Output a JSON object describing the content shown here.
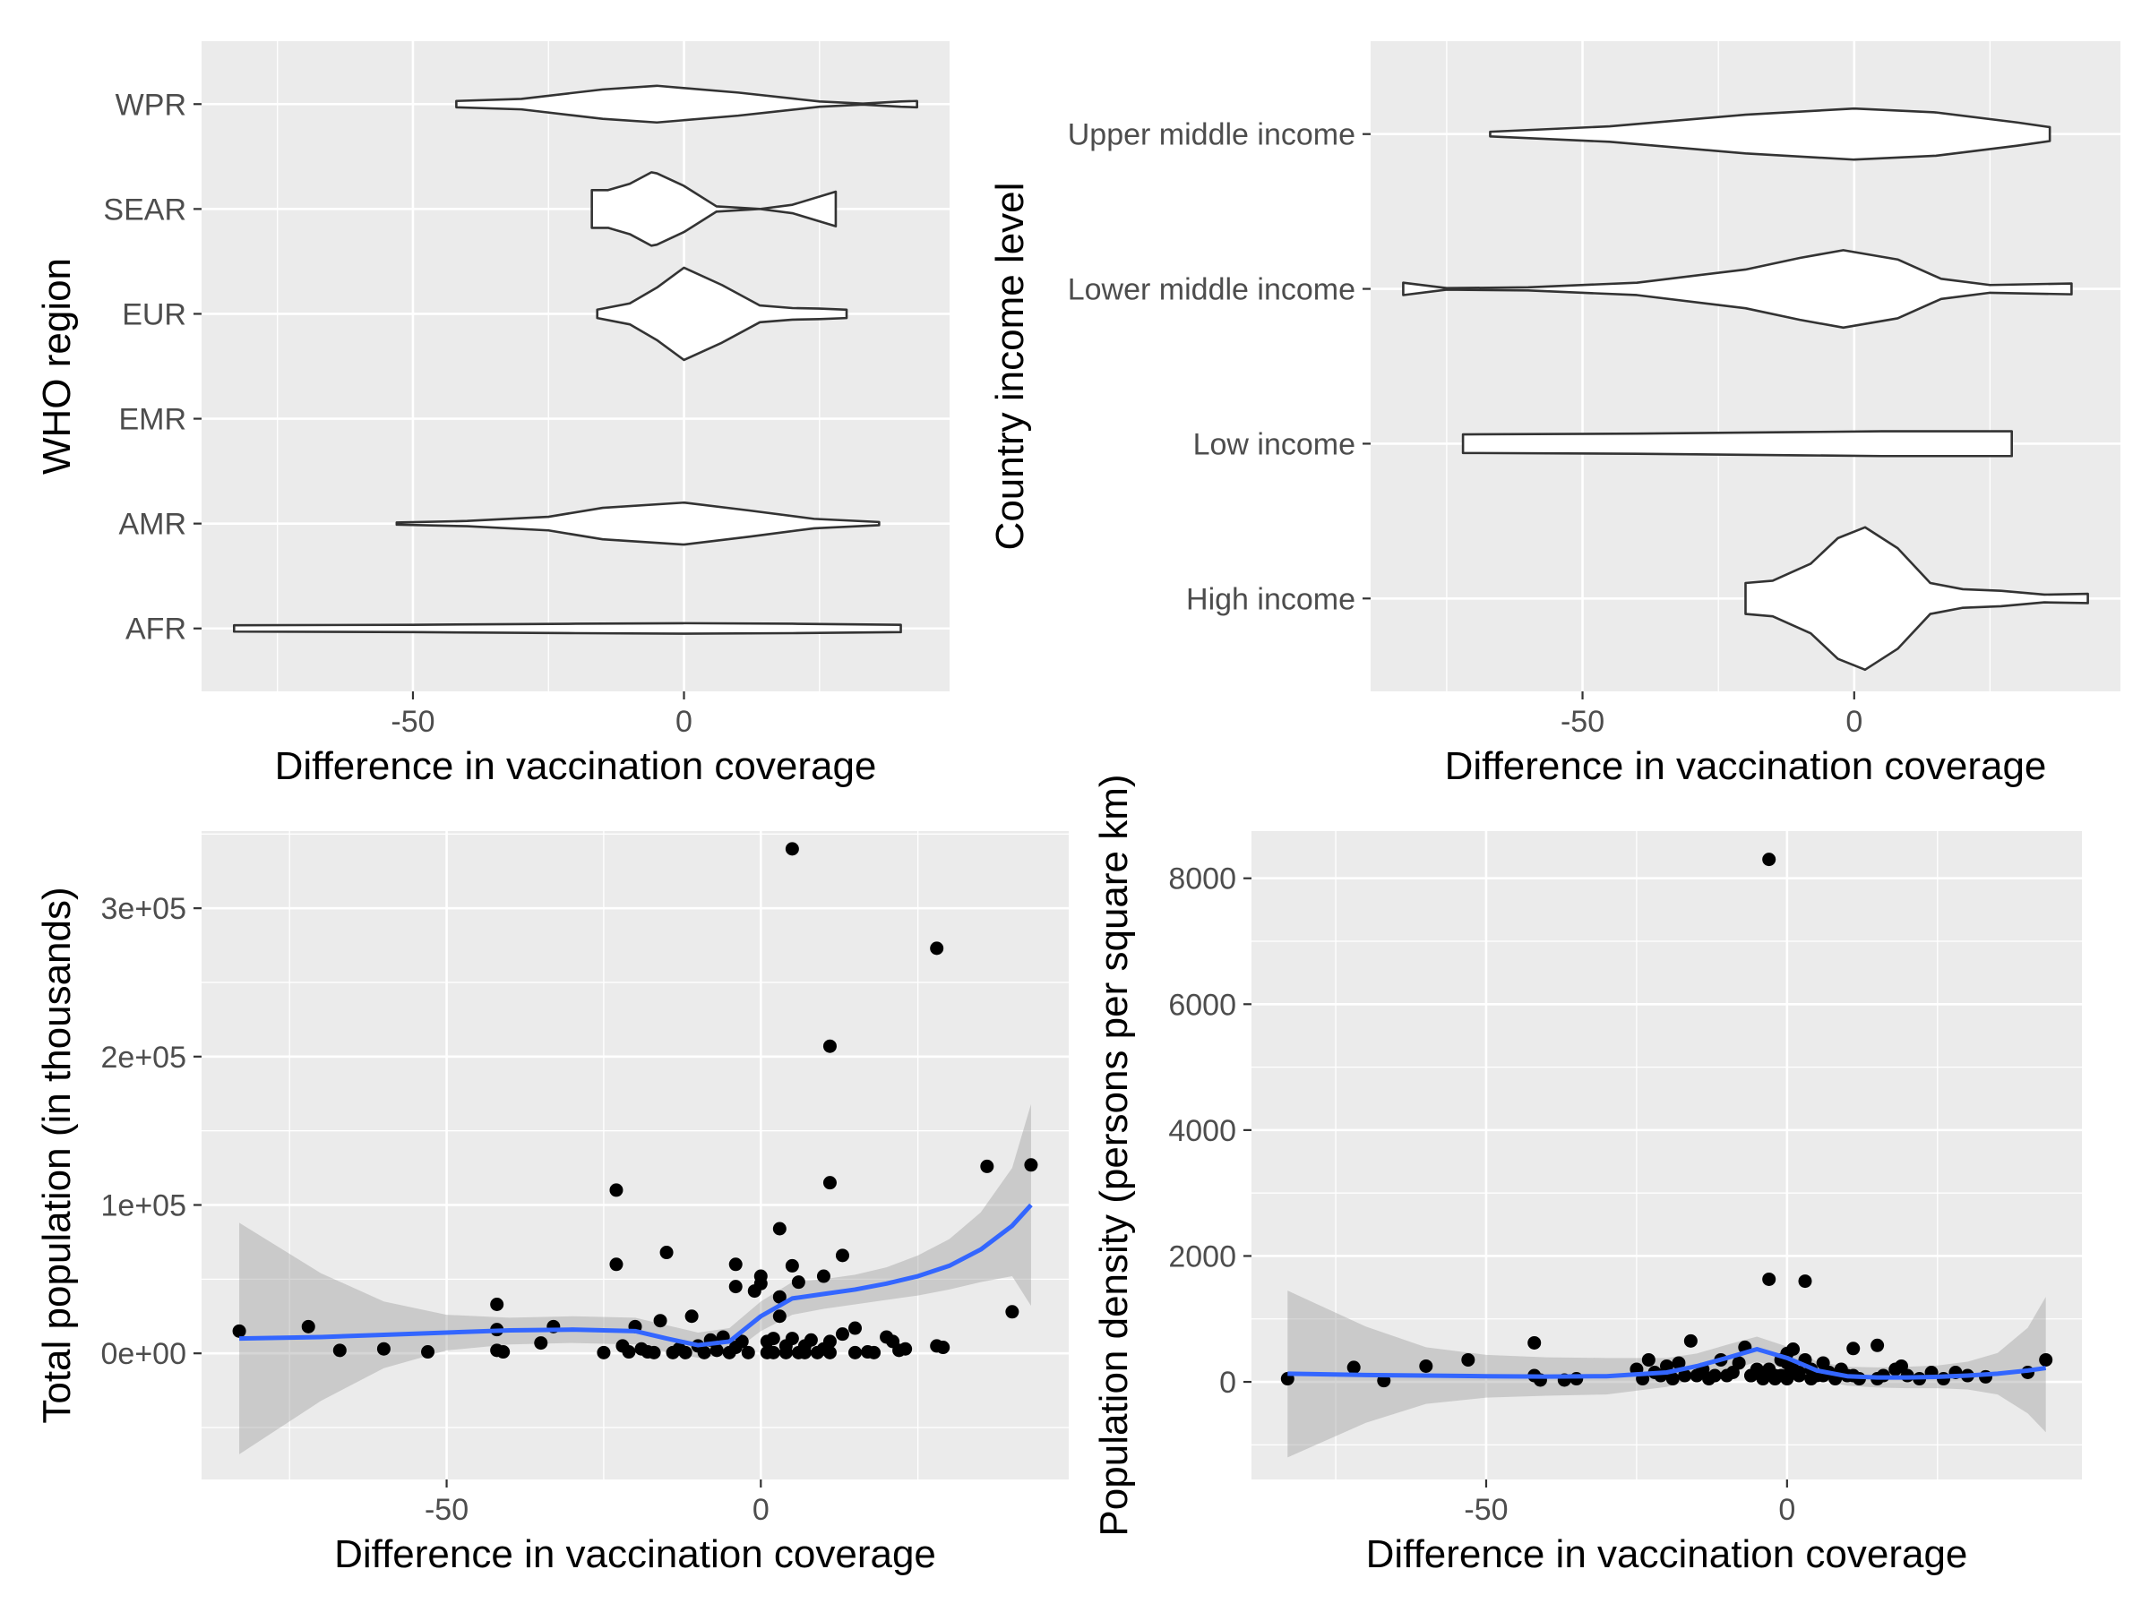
{
  "chart_data": [
    {
      "id": "p1",
      "type": "violin",
      "xlabel": "Difference in vaccination coverage",
      "ylabel": "WHO region",
      "xlim": [
        -89,
        49
      ],
      "x_ticks": [
        -50,
        0
      ],
      "categories": [
        "AFR",
        "AMR",
        "EMR",
        "EUR",
        "SEAR",
        "WPR"
      ],
      "violins": [
        {
          "category": "AFR",
          "profile": [
            [
              -83,
              0.06
            ],
            [
              -50,
              0.07
            ],
            [
              -20,
              0.09
            ],
            [
              0,
              0.1
            ],
            [
              20,
              0.09
            ],
            [
              40,
              0.07
            ]
          ]
        },
        {
          "category": "AMR",
          "profile": [
            [
              -53,
              0.02
            ],
            [
              -40,
              0.05
            ],
            [
              -25,
              0.13
            ],
            [
              -15,
              0.3
            ],
            [
              0,
              0.4
            ],
            [
              12,
              0.25
            ],
            [
              24,
              0.09
            ],
            [
              36,
              0.03
            ]
          ]
        },
        {
          "category": "EMR",
          "profile": []
        },
        {
          "category": "EUR",
          "profile": [
            [
              -16,
              0.08
            ],
            [
              -10,
              0.2
            ],
            [
              -5,
              0.5
            ],
            [
              0,
              0.88
            ],
            [
              7,
              0.55
            ],
            [
              14,
              0.16
            ],
            [
              20,
              0.11
            ],
            [
              25,
              0.1
            ],
            [
              30,
              0.08
            ]
          ]
        },
        {
          "category": "SEAR",
          "profile": [
            [
              -17,
              0.36
            ],
            [
              -14,
              0.36
            ],
            [
              -10,
              0.48
            ],
            [
              -6,
              0.7
            ],
            [
              -5,
              0.68
            ],
            [
              0,
              0.44
            ],
            [
              6,
              0.05
            ],
            [
              14,
              0.0
            ],
            [
              20,
              0.08
            ],
            [
              28,
              0.33
            ]
          ]
        },
        {
          "category": "WPR",
          "profile": [
            [
              -42,
              0.06
            ],
            [
              -30,
              0.1
            ],
            [
              -15,
              0.28
            ],
            [
              -5,
              0.35
            ],
            [
              10,
              0.22
            ],
            [
              25,
              0.05
            ],
            [
              33,
              0.01
            ],
            [
              40,
              0.05
            ],
            [
              43,
              0.06
            ]
          ]
        }
      ]
    },
    {
      "id": "p2",
      "type": "violin",
      "xlabel": "Difference in vaccination coverage",
      "ylabel": "Country income level",
      "xlim": [
        -89,
        49
      ],
      "x_ticks": [
        -50,
        0
      ],
      "categories": [
        "High income",
        "Low income",
        "Lower middle income",
        "Upper middle income"
      ],
      "violins": [
        {
          "category": "High income",
          "profile": [
            [
              -20,
              0.2
            ],
            [
              -15,
              0.23
            ],
            [
              -8,
              0.45
            ],
            [
              -3,
              0.78
            ],
            [
              2,
              0.92
            ],
            [
              8,
              0.65
            ],
            [
              14,
              0.2
            ],
            [
              20,
              0.12
            ],
            [
              27,
              0.1
            ],
            [
              35,
              0.05
            ],
            [
              43,
              0.06
            ]
          ]
        },
        {
          "category": "Low income",
          "profile": [
            [
              -72,
              0.12
            ],
            [
              -40,
              0.13
            ],
            [
              -10,
              0.15
            ],
            [
              5,
              0.16
            ],
            [
              29,
              0.16
            ]
          ]
        },
        {
          "category": "Lower middle income",
          "profile": [
            [
              -83,
              0.08
            ],
            [
              -75,
              0.01
            ],
            [
              -60,
              0.02
            ],
            [
              -40,
              0.08
            ],
            [
              -20,
              0.25
            ],
            [
              -10,
              0.4
            ],
            [
              -2,
              0.5
            ],
            [
              8,
              0.38
            ],
            [
              16,
              0.13
            ],
            [
              25,
              0.05
            ],
            [
              40,
              0.07
            ]
          ]
        },
        {
          "category": "Upper middle income",
          "profile": [
            [
              -67,
              0.03
            ],
            [
              -45,
              0.1
            ],
            [
              -20,
              0.25
            ],
            [
              0,
              0.33
            ],
            [
              15,
              0.28
            ],
            [
              30,
              0.15
            ],
            [
              36,
              0.09
            ]
          ]
        }
      ]
    },
    {
      "id": "p3",
      "type": "scatter",
      "xlabel": "Difference in vaccination coverage",
      "ylabel": "Total population (in thousands)",
      "xlim": [
        -89,
        49
      ],
      "ylim": [
        -85000,
        352000
      ],
      "x_ticks": [
        -50,
        0
      ],
      "y_ticks": [
        0,
        100000,
        200000,
        300000
      ],
      "y_tick_labels": [
        "0e+00",
        "1e+05",
        "2e+05",
        "3e+05"
      ],
      "points": [
        [
          -83,
          15000
        ],
        [
          -72,
          18000
        ],
        [
          -67,
          2000
        ],
        [
          -60,
          3000
        ],
        [
          -53,
          1000
        ],
        [
          -42,
          33000
        ],
        [
          -42,
          16000
        ],
        [
          -42,
          2000
        ],
        [
          -41,
          1000
        ],
        [
          -35,
          7000
        ],
        [
          -33,
          18000
        ],
        [
          -25,
          500
        ],
        [
          -23,
          110000
        ],
        [
          -23,
          60000
        ],
        [
          -22,
          5000
        ],
        [
          -21,
          1000
        ],
        [
          -20,
          18000
        ],
        [
          -19,
          3000
        ],
        [
          -18,
          1000
        ],
        [
          -17,
          500
        ],
        [
          -16,
          22000
        ],
        [
          -15,
          68000
        ],
        [
          -14,
          500
        ],
        [
          -13,
          3000
        ],
        [
          -12,
          500
        ],
        [
          -11,
          25000
        ],
        [
          -10,
          5000
        ],
        [
          -9,
          500
        ],
        [
          -8,
          9000
        ],
        [
          -7,
          2000
        ],
        [
          -6,
          11000
        ],
        [
          -5,
          500
        ],
        [
          -4,
          4000
        ],
        [
          -4,
          60000
        ],
        [
          -4,
          45000
        ],
        [
          -3,
          8000
        ],
        [
          -2,
          500
        ],
        [
          -1,
          42000
        ],
        [
          0,
          47000
        ],
        [
          0,
          52000
        ],
        [
          1,
          500
        ],
        [
          1,
          8000
        ],
        [
          2,
          10000
        ],
        [
          2,
          500
        ],
        [
          3,
          84000
        ],
        [
          3,
          38000
        ],
        [
          3,
          25000
        ],
        [
          4,
          500
        ],
        [
          4,
          5000
        ],
        [
          5,
          340000
        ],
        [
          5,
          59000
        ],
        [
          5,
          10000
        ],
        [
          6,
          48000
        ],
        [
          6,
          500
        ],
        [
          7,
          500
        ],
        [
          7,
          5000
        ],
        [
          8,
          9000
        ],
        [
          9,
          500
        ],
        [
          10,
          52000
        ],
        [
          10,
          3000
        ],
        [
          11,
          207000
        ],
        [
          11,
          115000
        ],
        [
          11,
          8000
        ],
        [
          11,
          500
        ],
        [
          13,
          66000
        ],
        [
          13,
          13000
        ],
        [
          15,
          17000
        ],
        [
          15,
          500
        ],
        [
          17,
          1000
        ],
        [
          18,
          500
        ],
        [
          20,
          11000
        ],
        [
          21,
          8000
        ],
        [
          22,
          2000
        ],
        [
          23,
          3000
        ],
        [
          28,
          273000
        ],
        [
          28,
          5000
        ],
        [
          29,
          4000
        ],
        [
          36,
          126000
        ],
        [
          40,
          28000
        ],
        [
          43,
          127000
        ]
      ],
      "smooth": {
        "x": [
          -83,
          -70,
          -60,
          -50,
          -40,
          -30,
          -20,
          -15,
          -10,
          -5,
          0,
          5,
          10,
          15,
          20,
          25,
          30,
          35,
          40,
          43
        ],
        "y": [
          10000,
          11000,
          12500,
          14000,
          15500,
          16000,
          15000,
          10000,
          5500,
          8000,
          25000,
          37000,
          40000,
          43000,
          47000,
          52000,
          59000,
          70000,
          86000,
          100000
        ],
        "lower": [
          -68000,
          -32000,
          -10000,
          2000,
          6000,
          7000,
          6000,
          1000,
          -3000,
          -1000,
          15000,
          26000,
          30000,
          33000,
          36000,
          39000,
          43000,
          48000,
          52000,
          32000
        ],
        "upper": [
          88000,
          54000,
          35000,
          26000,
          24000,
          25000,
          24000,
          19000,
          14000,
          17000,
          35000,
          48000,
          50000,
          53000,
          58000,
          66000,
          77000,
          95000,
          125000,
          168000
        ]
      }
    },
    {
      "id": "p4",
      "type": "scatter",
      "xlabel": "Difference in vaccination coverage",
      "ylabel": "Population density (persons per square km)",
      "xlim": [
        -89,
        49
      ],
      "ylim": [
        -1550,
        8750
      ],
      "x_ticks": [
        -50,
        0
      ],
      "y_ticks": [
        0,
        2000,
        4000,
        6000,
        8000
      ],
      "y_tick_labels": [
        "0",
        "2000",
        "4000",
        "6000",
        "8000"
      ],
      "points": [
        [
          -83,
          50
        ],
        [
          -72,
          230
        ],
        [
          -67,
          20
        ],
        [
          -60,
          250
        ],
        [
          -53,
          350
        ],
        [
          -42,
          620
        ],
        [
          -42,
          100
        ],
        [
          -41,
          30
        ],
        [
          -37,
          30
        ],
        [
          -35,
          50
        ],
        [
          -25,
          200
        ],
        [
          -24,
          50
        ],
        [
          -23,
          350
        ],
        [
          -22,
          150
        ],
        [
          -21,
          100
        ],
        [
          -20,
          250
        ],
        [
          -19,
          50
        ],
        [
          -18,
          300
        ],
        [
          -17,
          100
        ],
        [
          -16,
          650
        ],
        [
          -15,
          100
        ],
        [
          -14,
          200
        ],
        [
          -13,
          50
        ],
        [
          -12,
          100
        ],
        [
          -11,
          350
        ],
        [
          -10,
          100
        ],
        [
          -9,
          150
        ],
        [
          -8,
          300
        ],
        [
          -7,
          550
        ],
        [
          -6,
          100
        ],
        [
          -6,
          100
        ],
        [
          -5,
          200
        ],
        [
          -4,
          50
        ],
        [
          -4,
          100
        ],
        [
          -3,
          8300
        ],
        [
          -3,
          1630
        ],
        [
          -3,
          200
        ],
        [
          -2,
          50
        ],
        [
          -2,
          100
        ],
        [
          -1,
          350
        ],
        [
          -1,
          100
        ],
        [
          0,
          50
        ],
        [
          0,
          450
        ],
        [
          0,
          300
        ],
        [
          0,
          100
        ],
        [
          1,
          520
        ],
        [
          1,
          200
        ],
        [
          2,
          150
        ],
        [
          2,
          100
        ],
        [
          3,
          1600
        ],
        [
          3,
          350
        ],
        [
          4,
          50
        ],
        [
          4,
          200
        ],
        [
          5,
          100
        ],
        [
          6,
          300
        ],
        [
          6,
          100
        ],
        [
          7,
          150
        ],
        [
          8,
          50
        ],
        [
          9,
          200
        ],
        [
          10,
          100
        ],
        [
          11,
          530
        ],
        [
          11,
          100
        ],
        [
          12,
          50
        ],
        [
          15,
          580
        ],
        [
          15,
          50
        ],
        [
          16,
          100
        ],
        [
          18,
          200
        ],
        [
          19,
          250
        ],
        [
          20,
          100
        ],
        [
          22,
          50
        ],
        [
          24,
          150
        ],
        [
          26,
          50
        ],
        [
          28,
          150
        ],
        [
          30,
          100
        ],
        [
          33,
          80
        ],
        [
          40,
          150
        ],
        [
          43,
          350
        ]
      ],
      "smooth": {
        "x": [
          -83,
          -70,
          -60,
          -50,
          -40,
          -30,
          -20,
          -15,
          -10,
          -5,
          0,
          5,
          10,
          15,
          20,
          25,
          30,
          35,
          40,
          43
        ],
        "y": [
          130,
          110,
          100,
          90,
          85,
          90,
          150,
          250,
          380,
          520,
          380,
          180,
          90,
          70,
          70,
          80,
          100,
          130,
          180,
          220
        ],
        "lower": [
          -1200,
          -650,
          -350,
          -250,
          -220,
          -200,
          -80,
          50,
          170,
          320,
          200,
          40,
          -60,
          -90,
          -100,
          -100,
          -120,
          -200,
          -500,
          -800
        ],
        "upper": [
          1450,
          880,
          550,
          430,
          390,
          380,
          380,
          450,
          590,
          720,
          560,
          320,
          240,
          230,
          240,
          260,
          320,
          460,
          860,
          1350
        ]
      }
    }
  ]
}
